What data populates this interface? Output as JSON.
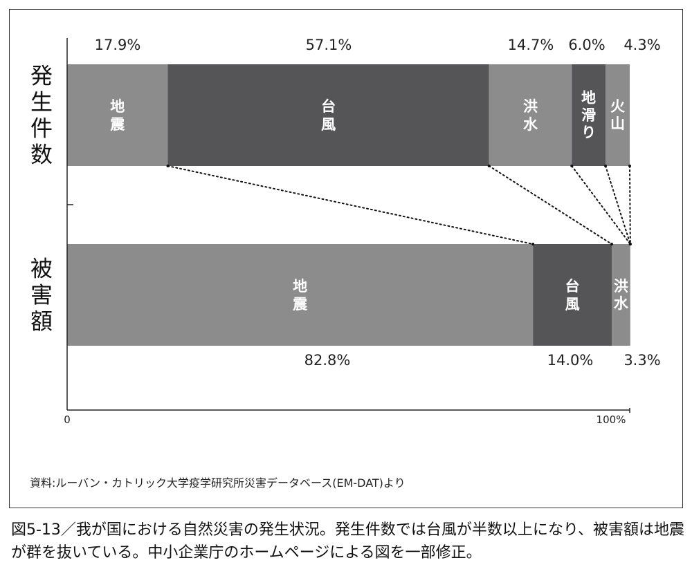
{
  "chart_data": {
    "type": "bar",
    "orientation": "horizontal",
    "stacked": "percent",
    "categories": [
      "発生件数",
      "被害額"
    ],
    "xlim": [
      0,
      100
    ],
    "x_ticks": [
      "0",
      "100%"
    ],
    "series": [
      {
        "name": "地震",
        "values": [
          17.9,
          82.8
        ],
        "labels": [
          "17.9%",
          "82.8%"
        ],
        "colors": [
          "#8c8c8c",
          "#8c8c8c"
        ]
      },
      {
        "name": "台風",
        "values": [
          57.1,
          14.0
        ],
        "labels": [
          "57.1%",
          "14.0%"
        ],
        "colors": [
          "#555558",
          "#555558"
        ]
      },
      {
        "name": "洪水",
        "values": [
          14.7,
          3.3
        ],
        "labels": [
          "14.7%",
          "3.3%"
        ],
        "colors": [
          "#8c8c8c",
          "#8c8c8c"
        ]
      },
      {
        "name": "地滑り",
        "values": [
          6.0,
          0
        ],
        "labels": [
          "6.0%",
          ""
        ],
        "colors": [
          "#555558",
          "#555558"
        ]
      },
      {
        "name": "火山",
        "values": [
          4.3,
          0
        ],
        "labels": [
          "4.3%",
          ""
        ],
        "colors": [
          "#8c8c8c",
          "#8c8c8c"
        ]
      }
    ],
    "connector_lines": "dotted lines join matching segment boundaries of the two bars",
    "grid": false,
    "legend": "none (labels inside segments)"
  },
  "source_note": "資料:ルーバン・カトリック大学疫学研究所災害データベース(EM-DAT)より",
  "caption": "図5-13／我が国における自然災害の発生状況。発生件数では台風が半数以上になり、被害額は地震が群を抜いている。中小企業庁のホームページによる図を一部修正。"
}
